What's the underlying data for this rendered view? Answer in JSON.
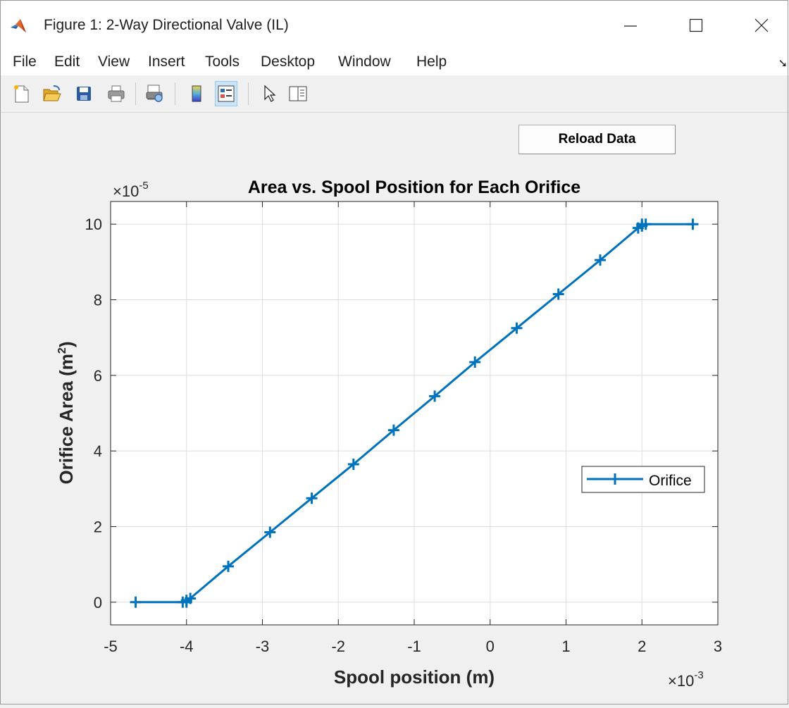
{
  "window": {
    "title": "Figure 1: 2-Way Directional Valve (IL)"
  },
  "menu": [
    "File",
    "Edit",
    "View",
    "Insert",
    "Tools",
    "Desktop",
    "Window",
    "Help"
  ],
  "toolbar": {
    "buttons": [
      "new-figure",
      "open-file",
      "save",
      "print",
      "print-preview",
      "hide-plot-tools",
      "show-plot-tools",
      "edit-plot",
      "property-inspector"
    ]
  },
  "reload_button": {
    "label": "Reload Data"
  },
  "colors": {
    "series": "#0072bd",
    "axes_bg": "#ffffff",
    "figure_bg": "#f0f0f0",
    "grid": "#dddddd"
  },
  "chart_data": {
    "type": "line",
    "title": "Area vs. Spool Position for Each Orifice",
    "xlabel": "Spool position (m)",
    "ylabel_main": "Orifice Area (m",
    "ylabel_sup": "2",
    "ylabel_close": ")",
    "x_multiplier": {
      "base": "×10",
      "exp": "-3"
    },
    "y_multiplier": {
      "base": "×10",
      "exp": "-5"
    },
    "xlim": [
      -5,
      3
    ],
    "ylim": [
      -0.6,
      10.6
    ],
    "xticks": [
      -5,
      -4,
      -3,
      -2,
      -1,
      0,
      1,
      2,
      3
    ],
    "yticks": [
      0,
      2,
      4,
      6,
      8,
      10
    ],
    "xtick_labels": [
      "-5",
      "-4",
      "-3",
      "-2",
      "-1",
      "0",
      "1",
      "2",
      "3"
    ],
    "ytick_labels": [
      "0",
      "2",
      "4",
      "6",
      "8",
      "10"
    ],
    "grid": true,
    "legend_position": "right",
    "marker": "+",
    "series": [
      {
        "name": "Orifice",
        "x": [
          -4.67,
          -4.05,
          -4.0,
          -4.0,
          -3.95,
          -3.45,
          -2.9,
          -2.35,
          -1.8,
          -1.27,
          -0.73,
          -0.2,
          0.35,
          0.9,
          1.45,
          1.95,
          2.0,
          2.0,
          2.05,
          2.67
        ],
        "y": [
          0,
          0,
          0,
          0.05,
          0.1,
          0.95,
          1.85,
          2.75,
          3.65,
          4.55,
          5.45,
          6.35,
          7.25,
          8.15,
          9.05,
          9.9,
          9.95,
          10.0,
          10.0,
          10.0
        ]
      }
    ]
  }
}
